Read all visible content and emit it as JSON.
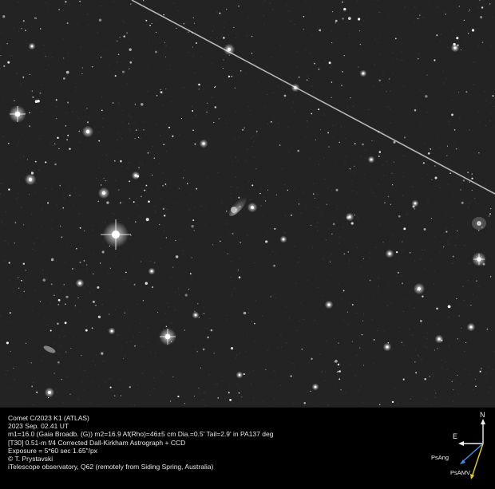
{
  "caption": [
    "Comet C/2023 K1 (ATLAS)",
    "2023 Sep. 02.41 UT",
    "m1=16.0 (Gaia Broadb. (G)) m2=16.9 Af(Rho)=46±5 cm Dia.=0.5' Tail=2.9' in PA137 deg",
    "[T30] 0.51-m f/4 Corrected Dall-Kirkham Astrograph + CCD",
    "Exposure = 5*60 sec 1.65\"/px",
    "© T. Prystavski",
    "iTelescope observatory, Q62 (remotely from Siding Spring, Australia)"
  ],
  "compass": {
    "north": "N",
    "east": "E",
    "psang": "PsAng",
    "psamv": "PsAMV",
    "psang_color": "#3f8fe6",
    "psamv_color": "#e8d21a"
  }
}
